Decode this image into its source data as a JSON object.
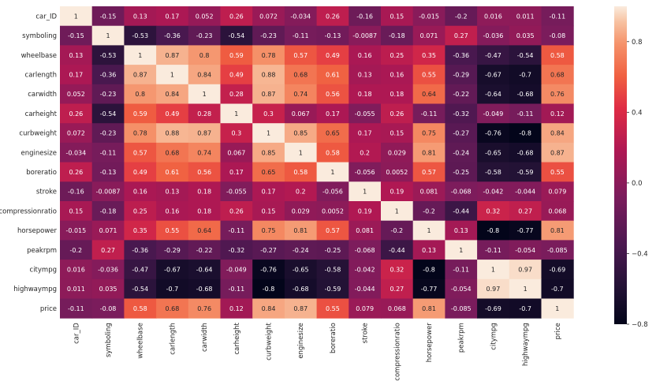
{
  "chart_data": {
    "type": "heatmap",
    "title": "",
    "xlabel": "",
    "ylabel": "",
    "labels": [
      "car_ID",
      "symboling",
      "wheelbase",
      "carlength",
      "carwidth",
      "carheight",
      "curbweight",
      "enginesize",
      "boreratio",
      "stroke",
      "compressionratio",
      "horsepower",
      "peakrpm",
      "citympg",
      "highwaympg",
      "price"
    ],
    "matrix": [
      [
        "1",
        "-0.15",
        "0.13",
        "0.17",
        "0.052",
        "0.26",
        "0.072",
        "-0.034",
        "0.26",
        "-0.16",
        "0.15",
        "-0.015",
        "-0.2",
        "0.016",
        "0.011",
        "-0.11"
      ],
      [
        "-0.15",
        "1",
        "-0.53",
        "-0.36",
        "-0.23",
        "-0.54",
        "-0.23",
        "-0.11",
        "-0.13",
        "-0.0087",
        "-0.18",
        "0.071",
        "0.27",
        "-0.036",
        "0.035",
        "-0.08"
      ],
      [
        "0.13",
        "-0.53",
        "1",
        "0.87",
        "0.8",
        "0.59",
        "0.78",
        "0.57",
        "0.49",
        "0.16",
        "0.25",
        "0.35",
        "-0.36",
        "-0.47",
        "-0.54",
        "0.58"
      ],
      [
        "0.17",
        "-0.36",
        "0.87",
        "1",
        "0.84",
        "0.49",
        "0.88",
        "0.68",
        "0.61",
        "0.13",
        "0.16",
        "0.55",
        "-0.29",
        "-0.67",
        "-0.7",
        "0.68"
      ],
      [
        "0.052",
        "-0.23",
        "0.8",
        "0.84",
        "1",
        "0.28",
        "0.87",
        "0.74",
        "0.56",
        "0.18",
        "0.18",
        "0.64",
        "-0.22",
        "-0.64",
        "-0.68",
        "0.76"
      ],
      [
        "0.26",
        "-0.54",
        "0.59",
        "0.49",
        "0.28",
        "1",
        "0.3",
        "0.067",
        "0.17",
        "-0.055",
        "0.26",
        "-0.11",
        "-0.32",
        "-0.049",
        "-0.11",
        "0.12"
      ],
      [
        "0.072",
        "-0.23",
        "0.78",
        "0.88",
        "0.87",
        "0.3",
        "1",
        "0.85",
        "0.65",
        "0.17",
        "0.15",
        "0.75",
        "-0.27",
        "-0.76",
        "-0.8",
        "0.84"
      ],
      [
        "-0.034",
        "-0.11",
        "0.57",
        "0.68",
        "0.74",
        "0.067",
        "0.85",
        "1",
        "0.58",
        "0.2",
        "0.029",
        "0.81",
        "-0.24",
        "-0.65",
        "-0.68",
        "0.87"
      ],
      [
        "0.26",
        "-0.13",
        "0.49",
        "0.61",
        "0.56",
        "0.17",
        "0.65",
        "0.58",
        "1",
        "-0.056",
        "0.0052",
        "0.57",
        "-0.25",
        "-0.58",
        "-0.59",
        "0.55"
      ],
      [
        "-0.16",
        "-0.0087",
        "0.16",
        "0.13",
        "0.18",
        "-0.055",
        "0.17",
        "0.2",
        "-0.056",
        "1",
        "0.19",
        "0.081",
        "-0.068",
        "-0.042",
        "-0.044",
        "0.079"
      ],
      [
        "0.15",
        "-0.18",
        "0.25",
        "0.16",
        "0.18",
        "0.26",
        "0.15",
        "0.029",
        "0.0052",
        "0.19",
        "1",
        "-0.2",
        "-0.44",
        "0.32",
        "0.27",
        "0.068"
      ],
      [
        "-0.015",
        "0.071",
        "0.35",
        "0.55",
        "0.64",
        "-0.11",
        "0.75",
        "0.81",
        "0.57",
        "0.081",
        "-0.2",
        "1",
        "0.13",
        "-0.8",
        "-0.77",
        "0.81"
      ],
      [
        "-0.2",
        "0.27",
        "-0.36",
        "-0.29",
        "-0.22",
        "-0.32",
        "-0.27",
        "-0.24",
        "-0.25",
        "-0.068",
        "-0.44",
        "0.13",
        "1",
        "-0.11",
        "-0.054",
        "-0.085"
      ],
      [
        "0.016",
        "-0.036",
        "-0.47",
        "-0.67",
        "-0.64",
        "-0.049",
        "-0.76",
        "-0.65",
        "-0.58",
        "-0.042",
        "0.32",
        "-0.8",
        "-0.11",
        "1",
        "0.97",
        "-0.69"
      ],
      [
        "0.011",
        "0.035",
        "-0.54",
        "-0.7",
        "-0.68",
        "-0.11",
        "-0.8",
        "-0.68",
        "-0.59",
        "-0.044",
        "0.27",
        "-0.77",
        "-0.054",
        "0.97",
        "1",
        "-0.7"
      ],
      [
        "-0.11",
        "-0.08",
        "0.58",
        "0.68",
        "0.76",
        "0.12",
        "0.84",
        "0.87",
        "0.55",
        "0.079",
        "0.068",
        "0.81",
        "-0.085",
        "-0.69",
        "-0.7",
        "1"
      ]
    ],
    "vmin": -0.8,
    "vmax": 1.0,
    "colorbar_ticks": [
      "0.8",
      "0.4",
      "0.0",
      "−0.4",
      "−0.8"
    ],
    "colorbar_tick_values": [
      0.8,
      0.4,
      0.0,
      -0.4,
      -0.8
    ],
    "colormap": "rocket",
    "legend_position": "right"
  }
}
